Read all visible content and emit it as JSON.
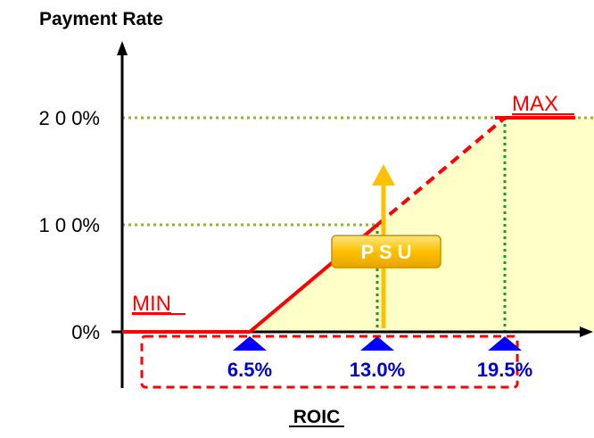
{
  "chart_data": {
    "type": "line",
    "title": "",
    "ylabel": "Payment Rate",
    "xlabel": "ROIC",
    "xlim": [
      0,
      27.5
    ],
    "ylim": [
      0,
      200
    ],
    "y_ticks": [
      {
        "value": 0,
        "label": "0%"
      },
      {
        "value": 100,
        "label": "1 0 0%"
      },
      {
        "value": 200,
        "label": "2 0 0%"
      }
    ],
    "x_markers": [
      {
        "value": 6.5,
        "label": "6.5%"
      },
      {
        "value": 13.0,
        "label": "13.0%"
      },
      {
        "value": 19.5,
        "label": "19.5%"
      }
    ],
    "series": [
      {
        "x": [
          0,
          6.5,
          13.0,
          19.5,
          27.5
        ],
        "y": [
          0,
          0,
          100,
          200,
          200
        ]
      }
    ],
    "annotations": {
      "min_label": "MIN",
      "max_label": "MAX",
      "psu_label": "P S U"
    },
    "colors": {
      "line": "#ff0000",
      "fill": "#ffffc8",
      "guides": "#8db33a",
      "vguides": "#1e9a1e",
      "markers": "#0000ff",
      "marker_text": "#0000cc",
      "arrow": "#ffc000",
      "box_border": "#ff0000"
    }
  }
}
